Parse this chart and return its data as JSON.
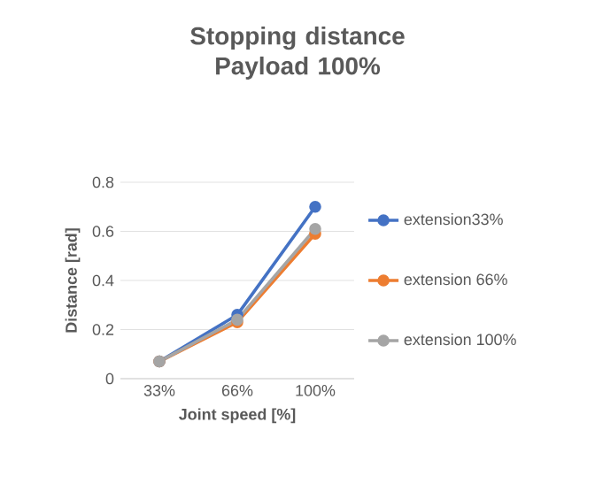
{
  "chart_data": {
    "type": "line",
    "title": "Stopping distance\nPayload 100%",
    "xlabel": "Joint speed [%]",
    "ylabel": "Distance [rad]",
    "categories": [
      "33%",
      "66%",
      "100%"
    ],
    "series": [
      {
        "name": "extension33%",
        "color": "#4472c4",
        "values": [
          0.07,
          0.26,
          0.7
        ]
      },
      {
        "name": "extension 66%",
        "color": "#ed7d31",
        "values": [
          0.07,
          0.23,
          0.59
        ]
      },
      {
        "name": "extension 100%",
        "color": "#a5a5a5",
        "values": [
          0.07,
          0.24,
          0.61
        ]
      }
    ],
    "ylim": [
      0,
      0.8
    ],
    "yticks": [
      0,
      0.2,
      0.4,
      0.6,
      0.8
    ],
    "grid": "y",
    "legend": "right",
    "marker": "circle",
    "line_style": "solid"
  }
}
